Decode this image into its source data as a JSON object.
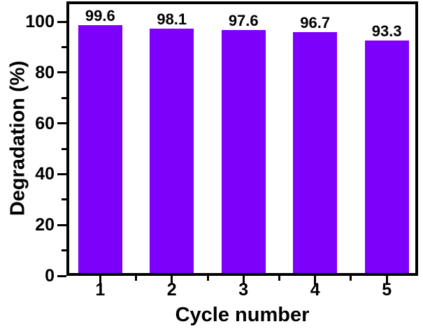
{
  "chart_data": {
    "type": "bar",
    "title": "",
    "xlabel": "Cycle number",
    "ylabel": "Degradation (%)",
    "categories": [
      "1",
      "2",
      "3",
      "4",
      "5"
    ],
    "values": [
      99.6,
      98.1,
      97.6,
      96.7,
      93.3
    ],
    "value_labels": [
      "99.6",
      "98.1",
      "97.6",
      "96.7",
      "93.3"
    ],
    "series": [
      {
        "name": "Degradation",
        "values": [
          99.6,
          98.1,
          97.6,
          96.7,
          93.3
        ]
      }
    ],
    "bar_color": "#7C00FA",
    "axis_color": "#000000",
    "text_color": "#000000",
    "background_color": "#FFFFFF",
    "ylim": [
      0,
      108
    ],
    "y_major_ticks": [
      0,
      20,
      40,
      60,
      80,
      100
    ],
    "y_minor_ticks": [
      10,
      30,
      50,
      70,
      90
    ],
    "x_minor_tick_positions": [
      1.5,
      2.5,
      3.5,
      4.5
    ],
    "grid": false,
    "legend": null,
    "ticks_direction": "out"
  }
}
